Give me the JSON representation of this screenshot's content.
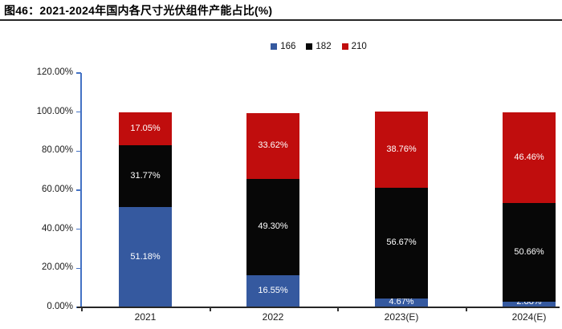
{
  "chart_data": {
    "type": "bar",
    "stacked": true,
    "title": "图46：2021-2024年国内各尺寸光伏组件产能占比(%)",
    "categories": [
      "2021",
      "2022",
      "2023(E)",
      "2024(E)"
    ],
    "series": [
      {
        "name": "166",
        "color": "#35599F",
        "values": [
          51.18,
          16.55,
          4.67,
          2.88
        ]
      },
      {
        "name": "182",
        "color": "#070707",
        "values": [
          31.77,
          49.3,
          56.67,
          50.66
        ]
      },
      {
        "name": "210",
        "color": "#C00D0D",
        "values": [
          17.05,
          33.62,
          38.76,
          46.46
        ]
      }
    ],
    "value_labels_shown": true,
    "label_format": "two-decimal-percent",
    "label_color": "#ffffff",
    "xlabel": "",
    "ylabel": "",
    "ylim": [
      0,
      120
    ],
    "yticks": [
      "0.00%",
      "20.00%",
      "40.00%",
      "60.00%",
      "80.00%",
      "100.00%",
      "120.00%"
    ],
    "grid": false,
    "legend_position": "top-center",
    "colors": {
      "y_axis": "#4472C4",
      "x_axis": "#262626",
      "title_rule": "#262626"
    }
  }
}
